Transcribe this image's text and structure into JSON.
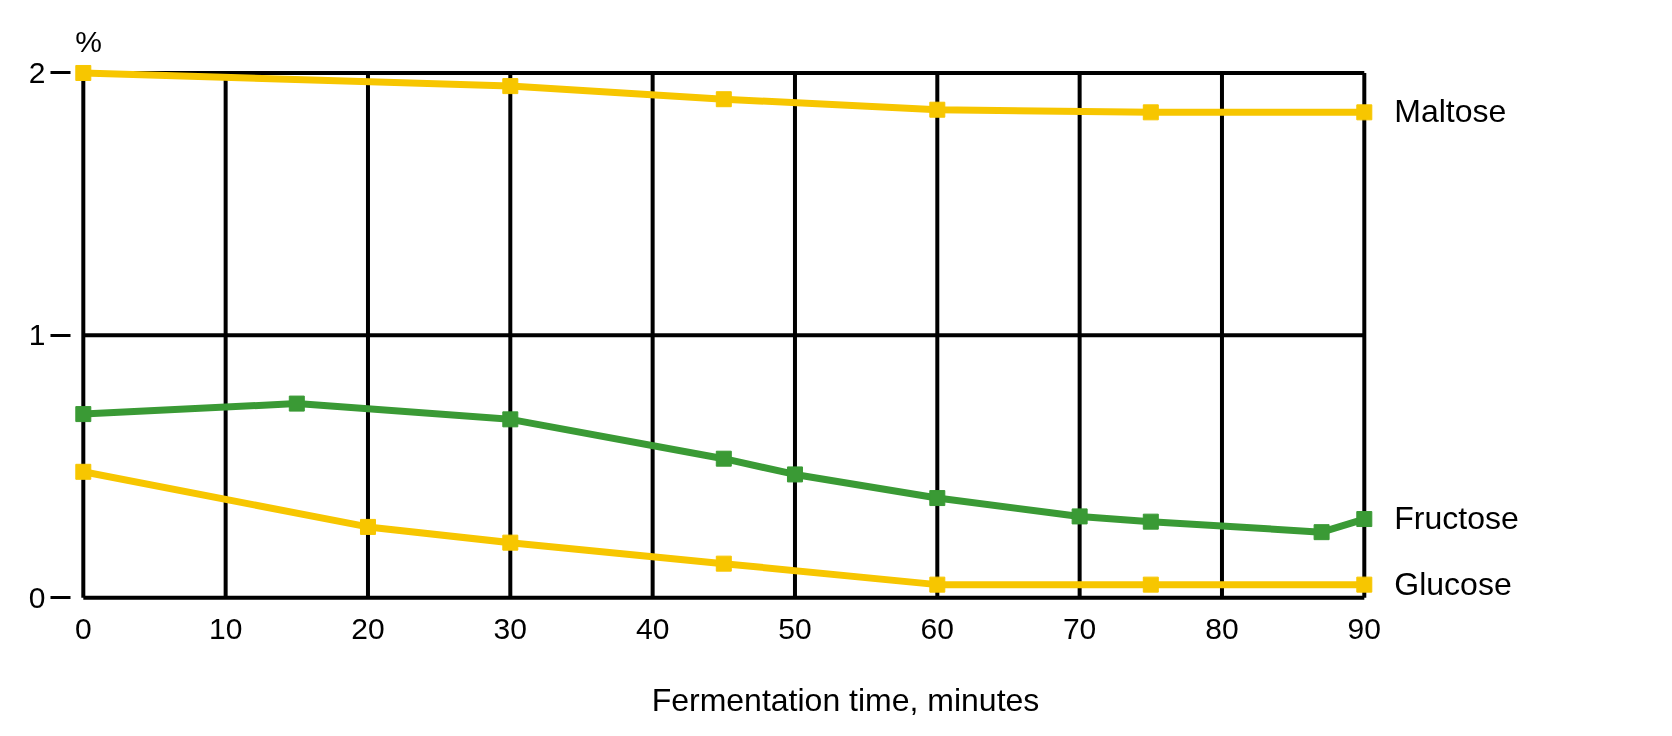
{
  "chart_data": {
    "type": "line",
    "xlabel": "Fermentation time, minutes",
    "ylabel": "%",
    "xlim": [
      0,
      90
    ],
    "ylim": [
      0,
      2
    ],
    "xticks": [
      0,
      10,
      20,
      30,
      40,
      50,
      60,
      70,
      80,
      90
    ],
    "yticks": [
      0,
      1,
      2
    ],
    "grid": true,
    "legend": false,
    "marker": "square",
    "line_style": "solid",
    "series": [
      {
        "name": "Maltose",
        "color": "#f7c600",
        "x": [
          0,
          30,
          45,
          60,
          75,
          90
        ],
        "values": [
          2.0,
          1.95,
          1.9,
          1.86,
          1.85,
          1.85
        ]
      },
      {
        "name": "Fructose",
        "color": "#3a9a35",
        "x": [
          0,
          15,
          30,
          45,
          50,
          60,
          70,
          75,
          87,
          90
        ],
        "values": [
          0.7,
          0.74,
          0.68,
          0.53,
          0.47,
          0.38,
          0.31,
          0.29,
          0.25,
          0.3
        ]
      },
      {
        "name": "Glucose",
        "color": "#f7c600",
        "x": [
          0,
          20,
          30,
          45,
          60,
          75,
          90
        ],
        "values": [
          0.48,
          0.27,
          0.21,
          0.13,
          0.05,
          0.05,
          0.05
        ]
      }
    ]
  }
}
